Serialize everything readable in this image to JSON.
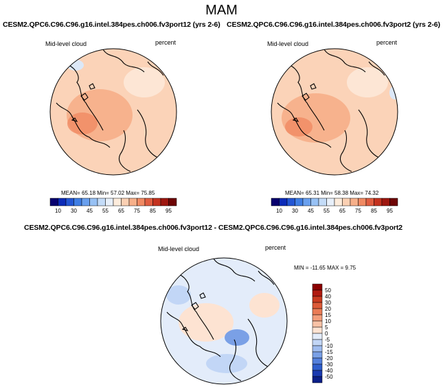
{
  "page": {
    "main_title": "MAM"
  },
  "panels": [
    {
      "title": "CESM2.QPC6.C96.C96.g16.intel.384pes.ch006.fv3port12 (yrs 2-6)",
      "left_label": "Mid-level cloud",
      "right_label": "percent",
      "stats": "MEAN= 65.18  Min= 57.02  Max= 75.85"
    },
    {
      "title": "CESM2.QPC6.C96.C96.g16.intel.384pes.ch006.fv3port2 (yrs 2-6)",
      "left_label": "Mid-level cloud",
      "right_label": "percent",
      "stats": "MEAN= 65.31  Min= 58.38  Max= 74.32"
    },
    {
      "title": "CESM2.QPC6.C96.C96.g16.intel.384pes.ch006.fv3port12 - CESM2.QPC6.C96.C96.g16.intel.384pes.ch006.fv3port2",
      "left_label": "Mid-level cloud",
      "right_label": "percent",
      "stats": "MIN = -11.65 MAX =   9.75"
    }
  ],
  "chart_data": [
    {
      "type": "heatmap",
      "title": "CESM2.QPC6.C96.C96.g16.intel.384pes.ch006.fv3port12 (yrs 2-6)",
      "variable": "Mid-level cloud",
      "units": "percent",
      "projection": "north polar stereographic",
      "mean": 65.18,
      "min": 57.02,
      "max": 75.85,
      "colorbar_ticks": [
        "10",
        "30",
        "45",
        "55",
        "65",
        "75",
        "85",
        "95"
      ],
      "colorbar_levels": [
        10,
        20,
        30,
        40,
        45,
        50,
        55,
        60,
        65,
        70,
        75,
        80,
        85,
        90,
        95
      ],
      "colorbar_colors": [
        "#08006e",
        "#0c2bb8",
        "#2356d4",
        "#3f7ee4",
        "#6aa0ee",
        "#97c1f4",
        "#c4dcf8",
        "#e8f0fa",
        "#fdecdc",
        "#fbd0b3",
        "#f7b08a",
        "#f08a63",
        "#e05d40",
        "#c4321f",
        "#9e1710",
        "#6e0505"
      ]
    },
    {
      "type": "heatmap",
      "title": "CESM2.QPC6.C96.C96.g16.intel.384pes.ch006.fv3port2 (yrs 2-6)",
      "variable": "Mid-level cloud",
      "units": "percent",
      "projection": "north polar stereographic",
      "mean": 65.31,
      "min": 58.38,
      "max": 74.32,
      "colorbar_ticks": [
        "10",
        "30",
        "45",
        "55",
        "65",
        "75",
        "85",
        "95"
      ],
      "colorbar_levels": [
        10,
        20,
        30,
        40,
        45,
        50,
        55,
        60,
        65,
        70,
        75,
        80,
        85,
        90,
        95
      ],
      "colorbar_colors": [
        "#08006e",
        "#0c2bb8",
        "#2356d4",
        "#3f7ee4",
        "#6aa0ee",
        "#97c1f4",
        "#c4dcf8",
        "#e8f0fa",
        "#fdecdc",
        "#fbd0b3",
        "#f7b08a",
        "#f08a63",
        "#e05d40",
        "#c4321f",
        "#9e1710",
        "#6e0505"
      ]
    },
    {
      "type": "heatmap",
      "title": "CESM2.QPC6.C96.C96.g16.intel.384pes.ch006.fv3port12 - CESM2.QPC6.C96.C96.g16.intel.384pes.ch006.fv3port2",
      "variable": "Mid-level cloud",
      "units": "percent",
      "projection": "north polar stereographic",
      "min": -11.65,
      "max": 9.75,
      "colorbar_orientation": "vertical",
      "colorbar_ticks": [
        "50",
        "40",
        "30",
        "20",
        "15",
        "10",
        "5",
        "0",
        "-5",
        "-10",
        "-15",
        "-20",
        "-30",
        "-40",
        "-50"
      ],
      "colorbar_colors": [
        "#8b0000",
        "#b01a10",
        "#c93a20",
        "#dc5a38",
        "#ea7c56",
        "#f39e7c",
        "#f8c2a6",
        "#fde3d2",
        "#e3ecfa",
        "#c2d6f6",
        "#9fbcef",
        "#7aa0e6",
        "#5480dc",
        "#2f5ecc",
        "#1a3ab0",
        "#0b1f88"
      ]
    }
  ]
}
